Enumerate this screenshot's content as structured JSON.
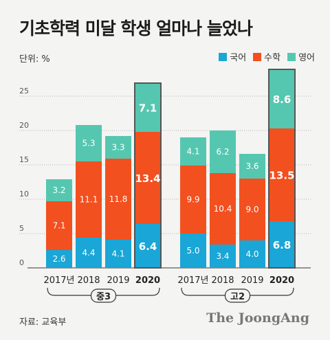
{
  "title": "기초학력 미달 학생 얼마나 늘었나",
  "unit_label": "단위: %",
  "source": "자료: 교육부",
  "brand": "The JoongAng",
  "colors": {
    "korean": "#1aa6d6",
    "math": "#f2501f",
    "english": "#55c7b0",
    "highlight_border": "#555555"
  },
  "chart_data": {
    "type": "bar",
    "stacked": true,
    "ylim": [
      0,
      28
    ],
    "yticks": [
      0,
      5,
      10,
      15,
      20,
      25
    ],
    "grid": true,
    "legend_position": "top-right",
    "groups": [
      {
        "name": "중3",
        "categories": [
          "2017년",
          "2018",
          "2019",
          "2020"
        ]
      },
      {
        "name": "고2",
        "categories": [
          "2017년",
          "2018",
          "2019",
          "2020"
        ]
      }
    ],
    "series": [
      {
        "name": "국어",
        "key": "korean",
        "values": [
          [
            2.6,
            4.4,
            4.1,
            6.4
          ],
          [
            5.0,
            3.4,
            4.0,
            6.8
          ]
        ]
      },
      {
        "name": "수학",
        "key": "math",
        "values": [
          [
            7.1,
            11.1,
            11.8,
            13.4
          ],
          [
            9.9,
            10.4,
            9.0,
            13.5
          ]
        ]
      },
      {
        "name": "영어",
        "key": "english",
        "values": [
          [
            3.2,
            5.3,
            3.3,
            7.1
          ],
          [
            4.1,
            6.2,
            3.6,
            8.6
          ]
        ]
      }
    ],
    "highlight_category_index": 3
  }
}
